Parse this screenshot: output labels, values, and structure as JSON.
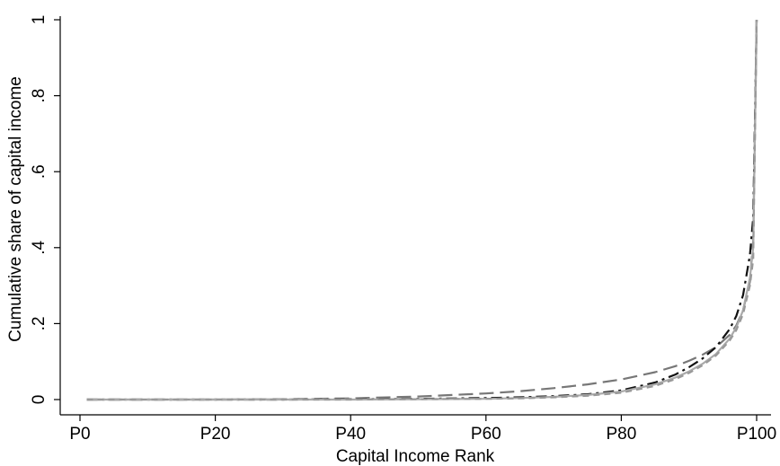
{
  "chart_data": {
    "type": "line",
    "title": "",
    "xlabel": "Capital Income Rank",
    "ylabel": "Cumulative share of capital income",
    "xlim": [
      0,
      100
    ],
    "ylim": [
      0,
      1
    ],
    "x_ticks": [
      {
        "value": 0,
        "label": "P0"
      },
      {
        "value": 20,
        "label": "P20"
      },
      {
        "value": 40,
        "label": "P40"
      },
      {
        "value": 60,
        "label": "P60"
      },
      {
        "value": 80,
        "label": "P80"
      },
      {
        "value": 100,
        "label": "P100"
      }
    ],
    "y_ticks": [
      {
        "value": 0,
        "label": "0"
      },
      {
        "value": 0.2,
        "label": ".2"
      },
      {
        "value": 0.4,
        "label": ".4"
      },
      {
        "value": 0.6,
        "label": ".6"
      },
      {
        "value": 0.8,
        "label": ".8"
      },
      {
        "value": 1,
        "label": "1"
      }
    ],
    "grid": false,
    "legend": "none",
    "x": [
      1,
      10,
      20,
      30,
      40,
      50,
      60,
      65,
      70,
      75,
      80,
      85,
      88,
      90,
      92,
      94,
      96,
      97,
      98,
      99,
      99.5,
      100
    ],
    "series": [
      {
        "style": "long-dash",
        "color": "#777777",
        "values": [
          0,
          0,
          0,
          0.001,
          0.003,
          0.008,
          0.016,
          0.022,
          0.03,
          0.04,
          0.053,
          0.072,
          0.088,
          0.102,
          0.118,
          0.138,
          0.17,
          0.195,
          0.235,
          0.31,
          0.42,
          1.0
        ]
      },
      {
        "style": "dash-dot",
        "color": "#111111",
        "values": [
          0,
          0,
          0,
          0,
          0.001,
          0.002,
          0.004,
          0.006,
          0.009,
          0.014,
          0.024,
          0.045,
          0.066,
          0.085,
          0.108,
          0.138,
          0.185,
          0.22,
          0.275,
          0.38,
          0.48,
          1.0
        ]
      },
      {
        "style": "solid",
        "color": "#aaaaaa",
        "values": [
          0,
          0,
          0,
          0,
          0,
          0.001,
          0.002,
          0.004,
          0.007,
          0.012,
          0.021,
          0.04,
          0.058,
          0.074,
          0.094,
          0.12,
          0.16,
          0.19,
          0.235,
          0.32,
          0.4,
          1.0
        ]
      },
      {
        "style": "short-dash",
        "color": "#999999",
        "values": [
          0,
          0,
          0,
          0,
          0,
          0.001,
          0.002,
          0.003,
          0.006,
          0.01,
          0.018,
          0.036,
          0.054,
          0.07,
          0.09,
          0.116,
          0.155,
          0.183,
          0.225,
          0.3,
          0.37,
          1.0
        ]
      }
    ]
  }
}
